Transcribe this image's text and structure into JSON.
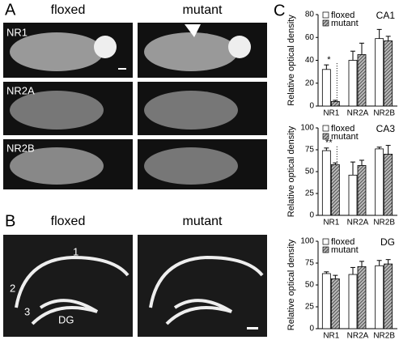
{
  "figure": {
    "labels": [
      "A",
      "B",
      "C"
    ],
    "panel_a": {
      "columns": [
        "floxed",
        "mutant"
      ],
      "rows": [
        "NR1",
        "NR2A",
        "NR2B"
      ]
    },
    "panel_b": {
      "columns": [
        "floxed",
        "mutant"
      ],
      "regions": [
        "1",
        "2",
        "3",
        "DG"
      ]
    }
  },
  "chart_data": [
    {
      "type": "bar",
      "title": "CA1",
      "y_label": "Relative optical density",
      "categories": [
        "NR1",
        "NR2A",
        "NR2B"
      ],
      "series": [
        {
          "name": "floxed",
          "color": "#ffffff",
          "values": [
            32,
            40,
            59
          ],
          "errors": [
            4,
            8,
            8
          ]
        },
        {
          "name": "mutant",
          "color": "#444444",
          "values": [
            4,
            45,
            57
          ],
          "errors": [
            1,
            10,
            4
          ]
        }
      ],
      "ylim": [
        0,
        80
      ],
      "yticks": [
        0,
        20,
        40,
        60,
        80
      ],
      "annotation": "*"
    },
    {
      "type": "bar",
      "title": "CA3",
      "y_label": "Relative optical density",
      "categories": [
        "NR1",
        "NR2A",
        "NR2B"
      ],
      "series": [
        {
          "name": "floxed",
          "color": "#ffffff",
          "values": [
            74,
            46,
            76
          ],
          "errors": [
            3,
            15,
            2
          ]
        },
        {
          "name": "mutant",
          "color": "#444444",
          "values": [
            58,
            57,
            70
          ],
          "errors": [
            2,
            6,
            10
          ]
        }
      ],
      "ylim": [
        0,
        100
      ],
      "yticks": [
        0,
        25,
        50,
        75,
        100
      ],
      "annotation": "**"
    },
    {
      "type": "bar",
      "title": "DG",
      "y_label": "Relative optical density",
      "categories": [
        "NR1",
        "NR2A",
        "NR2B"
      ],
      "series": [
        {
          "name": "floxed",
          "color": "#ffffff",
          "values": [
            63,
            62,
            72
          ],
          "errors": [
            2,
            8,
            6
          ]
        },
        {
          "name": "mutant",
          "color": "#444444",
          "values": [
            57,
            71,
            74
          ],
          "errors": [
            4,
            6,
            5
          ]
        }
      ],
      "ylim": [
        0,
        100
      ],
      "yticks": [
        0,
        25,
        50,
        75,
        100
      ]
    }
  ]
}
